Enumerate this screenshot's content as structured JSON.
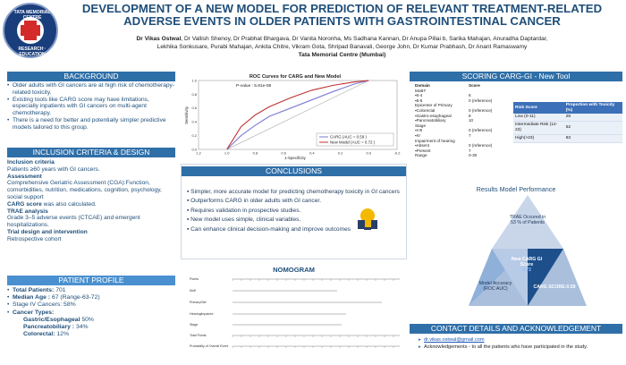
{
  "logo": {
    "top_text": "TATA MEMORIAL CENTRE",
    "bottom_text": "RESEARCH · EDUCATION"
  },
  "header": {
    "title_line1": "DEVELOPMENT OF A NEW MODEL FOR PREDICTION OF RELEVANT TREATMENT-RELATED",
    "title_line2": "ADVERSE EVENTS IN OLDER PATIENTS WITH GASTROINTESTINAL CANCER",
    "first_author": "Dr Vikas Ostwal",
    "authors_line1_rest": ", Dr Vallish Shenoy, Dr Prabhat Bhargava, Dr Vanita Noronha, Ms Sadhana Kannan, Dr Anupa Pillai b, Sarika Mahajan, Anuradha Daptardar,",
    "authors_line2": "Lekhika Sonkusare, Purabi Mahajan, Ankita Chitre, Vikram Gota, Shripad Banavali, George John, Dr Kumar Prabhash, Dr Anant Ramaswamy",
    "institution": "Tata Memorial Centre (Mumbai)"
  },
  "background": {
    "heading": "BACKGROUND",
    "bullets": [
      "Older adults with GI cancers are at high risk of chemotherapy-related toxicity.",
      "Existing tools like CARG score may have limitations, especially inpatients with GI cancers on multi-agent chemotherapy.",
      "There is a need for better and potentially simpler predictive models tailored to this group."
    ]
  },
  "criteria": {
    "heading": "INCLUSION CRITERIA & DESIGN",
    "inc_h": "Inclusion criteria",
    "inc": "Patients ≥60 years with GI cancers.",
    "assess_h": "Assessment",
    "assess": "Comprehensive Geriatric Assessment (CGA):Function, comorbidities, nutrition, medications, cognition, psychology, social support",
    "carg_h": "CARG score",
    "carg": "was also calculated.",
    "trae_h": "TRAE analysis",
    "trae": "Grade 3–5 adverse events (CTCAE) and emergent hospitalizations.",
    "trial_h": "Trial design and intervention",
    "trial": "Retrospective cohort"
  },
  "profile": {
    "heading": "PATIENT PROFILE",
    "total_label": "Total Patients:",
    "total": "701",
    "median_label": "Median Age :",
    "median": "67 (Range-63-72)",
    "stage": "Stage IV Cancers: 58%",
    "types_label": "Cancer Types:",
    "t1_label": "Gastric/Esophageal",
    "t1": "50%",
    "t2_label": "Pancreatobiliary :",
    "t2": "34%",
    "t3_label": "Colorectal:",
    "t3": "12%"
  },
  "roc": {
    "title": "ROC Curves for CARG and New Model",
    "pvalue": "P-value : 5.81e-08",
    "ylabel": "Sensitivity",
    "xlabel": "1-Specificity",
    "legend_carg": "CARG (AUC = 0.59 )",
    "legend_new": "New Model (AUC = 0.72 )",
    "ticks_x": [
      "1.2",
      "1.0",
      "0.8",
      "0.6",
      "0.4",
      "0.2",
      "0.0",
      "-0.2"
    ],
    "ticks_y": [
      "0.0",
      "0.2",
      "0.4",
      "0.6",
      "0.8",
      "1.0"
    ]
  },
  "chart_data": {
    "type": "line",
    "title": "ROC Curves for CARG and New Model",
    "xlabel": "1-Specificity",
    "ylabel": "Sensitivity",
    "xlim": [
      1.2,
      -0.2
    ],
    "ylim": [
      0,
      1
    ],
    "series": [
      {
        "name": "CARG (AUC = 0.59 )",
        "color": "#7b7ad6",
        "x": [
          1.0,
          0.9,
          0.8,
          0.7,
          0.55,
          0.4,
          0.25,
          0.1,
          0.0
        ],
        "y": [
          0.0,
          0.2,
          0.35,
          0.48,
          0.6,
          0.72,
          0.84,
          0.95,
          1.0
        ]
      },
      {
        "name": "New Model (AUC = 0.72 )",
        "color": "#c03030",
        "x": [
          1.0,
          0.9,
          0.8,
          0.7,
          0.55,
          0.4,
          0.25,
          0.1,
          0.0
        ],
        "y": [
          0.0,
          0.33,
          0.5,
          0.62,
          0.75,
          0.86,
          0.93,
          0.98,
          1.0
        ]
      }
    ]
  },
  "conclusions": {
    "heading": "CONCLUSIONS",
    "items": [
      "Simpler, more accurate model for predicting chemotherapy toxicity in GI cancers",
      "Outperforms CARG in older adults with GI cancer.",
      "Requires validation in prospective studies.",
      "New model uses simple, clinical variables.",
      "Can enhance clinical decision-making and improve outcomes"
    ]
  },
  "nomogram": {
    "heading": "NOMOGRAM",
    "rows": [
      "Points",
      "MoE",
      "PrimarySite",
      "Hearingimpaired",
      "Stage",
      "Total Points",
      "Probability of Overall Event"
    ]
  },
  "scoring": {
    "heading": "SCORING CARG-GI - New Tool",
    "col_domain": "Domain",
    "col_score": "Score",
    "rows": [
      [
        "MoBT",
        ""
      ],
      [
        "▪0-4",
        "6"
      ],
      [
        "▪5-8",
        "0 (reference)"
      ],
      [
        "Epicenter of Primary",
        ""
      ],
      [
        "▪Colorectal",
        "0 (reference)"
      ],
      [
        "▪Gastro-esophageal",
        "8"
      ],
      [
        "▪Pancreatobiliary",
        "10"
      ],
      [
        "Stage",
        ""
      ],
      [
        "▪I-III",
        "0 (reference)"
      ],
      [
        "▪IV",
        "7"
      ],
      [
        "Impairment of hearing",
        ""
      ],
      [
        "▪Absent",
        "0 (reference)"
      ],
      [
        "▪Present",
        "7"
      ],
      [
        "Range",
        "0-30"
      ]
    ]
  },
  "risk": {
    "h1": "Risk Score",
    "h2": "Proportion with Toxicity (%)",
    "rows": [
      [
        "Low (0-11)",
        "28"
      ],
      [
        "Intermediate Risk (12-23)",
        "52"
      ],
      [
        "High(>23)",
        "83"
      ]
    ]
  },
  "performance": {
    "heading": "Results Model Performance",
    "trae": "TRAE Occured in 53 % of Patients",
    "newcarg": "New CARG GI Score",
    "newcarg_val": "0.72",
    "model": "Model Accuracy (ROC AUC)",
    "carg": "CARG SCORE:0.59"
  },
  "contact": {
    "heading": "CONTACT DETAILS AND ACKNOWLEDGEMENT",
    "email": "dr.vikas.ostwal@gmail.com",
    "ack": "Acknowledgements - to all the patients who have participated in the study."
  }
}
